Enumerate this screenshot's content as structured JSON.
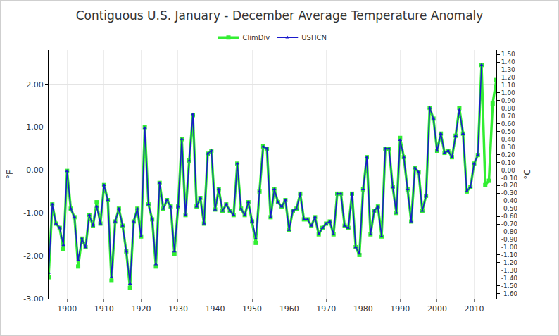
{
  "chart_data": {
    "type": "line",
    "title": "Contiguous U.S. January - December Average Temperature Anomaly",
    "y_label": "°F",
    "y2_label": "°C",
    "legend": "top",
    "grid": true,
    "x": [
      1895,
      1896,
      1897,
      1898,
      1899,
      1900,
      1901,
      1902,
      1903,
      1904,
      1905,
      1906,
      1907,
      1908,
      1909,
      1910,
      1911,
      1912,
      1913,
      1914,
      1915,
      1916,
      1917,
      1918,
      1919,
      1920,
      1921,
      1922,
      1923,
      1924,
      1925,
      1926,
      1927,
      1928,
      1929,
      1930,
      1931,
      1932,
      1933,
      1934,
      1935,
      1936,
      1937,
      1938,
      1939,
      1940,
      1941,
      1942,
      1943,
      1944,
      1945,
      1946,
      1947,
      1948,
      1949,
      1950,
      1951,
      1952,
      1953,
      1954,
      1955,
      1956,
      1957,
      1958,
      1959,
      1960,
      1961,
      1962,
      1963,
      1964,
      1965,
      1966,
      1967,
      1968,
      1969,
      1970,
      1971,
      1972,
      1973,
      1974,
      1975,
      1976,
      1977,
      1978,
      1979,
      1980,
      1981,
      1982,
      1983,
      1984,
      1985,
      1986,
      1987,
      1988,
      1989,
      1990,
      1991,
      1992,
      1993,
      1994,
      1995,
      1996,
      1997,
      1998,
      1999,
      2000,
      2001,
      2002,
      2003,
      2004,
      2005,
      2006,
      2007,
      2008,
      2009,
      2010,
      2011,
      2012,
      2013,
      2014,
      2015,
      2016
    ],
    "series": [
      {
        "name": "ClimDiv",
        "color": "#33ee33",
        "marker": "square",
        "line_style": "solid",
        "values": [
          -2.5,
          -0.8,
          -1.25,
          -1.35,
          -1.85,
          -0.02,
          -0.9,
          -1.1,
          -2.25,
          -1.6,
          -1.8,
          -1.05,
          -1.3,
          -0.75,
          -1.25,
          -0.35,
          -0.7,
          -2.58,
          -1.2,
          -0.9,
          -1.3,
          -1.9,
          -2.75,
          -1.2,
          -0.9,
          -1.55,
          1.0,
          -0.8,
          -1.15,
          -2.25,
          -0.3,
          -0.9,
          -0.7,
          -0.85,
          -1.95,
          -0.85,
          0.72,
          -1.05,
          0.22,
          1.28,
          -0.85,
          -0.65,
          -1.25,
          0.38,
          0.45,
          -0.92,
          -0.45,
          -0.95,
          -0.8,
          -0.95,
          -1.05,
          0.15,
          -0.9,
          -1.05,
          -0.75,
          -1.2,
          -1.7,
          -0.5,
          0.55,
          0.5,
          -1.1,
          -0.45,
          -0.75,
          -0.85,
          -0.7,
          -1.4,
          -0.95,
          -0.9,
          -0.55,
          -1.15,
          -1.15,
          -1.3,
          -1.1,
          -1.5,
          -1.35,
          -1.25,
          -1.2,
          -1.5,
          -0.55,
          -0.55,
          -1.3,
          -1.35,
          -0.55,
          -1.8,
          -1.98,
          -0.45,
          0.3,
          -1.5,
          -0.95,
          -0.85,
          -1.55,
          0.5,
          0.5,
          -0.4,
          -1.0,
          0.75,
          0.3,
          -0.45,
          -1.2,
          0.05,
          -0.05,
          -0.95,
          -0.6,
          1.45,
          1.2,
          0.45,
          0.85,
          0.4,
          0.45,
          0.3,
          0.8,
          1.45,
          0.85,
          -0.5,
          -0.4,
          0.15,
          0.35,
          2.45,
          -0.35,
          -0.25,
          1.55,
          2.1
        ]
      },
      {
        "name": "USHCN",
        "color": "#1a1acc",
        "marker": "triangle-up",
        "line_style": "solid",
        "values": [
          -2.4,
          -0.8,
          -1.25,
          -1.35,
          -1.75,
          -0.02,
          -0.9,
          -1.1,
          -2.1,
          -1.6,
          -1.8,
          -1.05,
          -1.3,
          -0.85,
          -1.25,
          -0.35,
          -0.7,
          -2.5,
          -1.2,
          -0.9,
          -1.3,
          -1.9,
          -2.65,
          -1.2,
          -0.9,
          -1.55,
          0.98,
          -0.8,
          -1.15,
          -2.2,
          -0.3,
          -0.9,
          -0.7,
          -0.85,
          -1.9,
          -0.85,
          0.72,
          -1.05,
          0.22,
          1.3,
          -0.85,
          -0.65,
          -1.25,
          0.38,
          0.45,
          -0.92,
          -0.45,
          -0.95,
          -0.8,
          -0.95,
          -1.05,
          0.15,
          -0.9,
          -1.05,
          -0.75,
          -1.2,
          -1.6,
          -0.5,
          0.55,
          0.5,
          -1.1,
          -0.45,
          -0.75,
          -0.85,
          -0.7,
          -1.4,
          -0.95,
          -0.9,
          -0.55,
          -1.15,
          -1.15,
          -1.3,
          -1.1,
          -1.5,
          -1.35,
          -1.25,
          -1.2,
          -1.5,
          -0.55,
          -0.55,
          -1.3,
          -1.35,
          -0.55,
          -1.8,
          -1.95,
          -0.45,
          0.3,
          -1.5,
          -0.95,
          -0.85,
          -1.55,
          0.5,
          0.5,
          -0.4,
          -1.0,
          0.7,
          0.3,
          -0.45,
          -1.2,
          0.05,
          -0.05,
          -0.95,
          -0.6,
          1.45,
          1.2,
          0.45,
          0.85,
          0.4,
          0.45,
          0.3,
          0.8,
          1.4,
          0.85,
          -0.5,
          -0.4,
          0.15,
          0.35,
          2.45,
          null,
          null,
          null,
          null
        ]
      }
    ],
    "xlim": [
      1895,
      2016
    ],
    "xticks": [
      1900,
      1910,
      1920,
      1930,
      1940,
      1950,
      1960,
      1970,
      1980,
      1990,
      2000,
      2010
    ],
    "ylim": [
      -3.0,
      2.8
    ],
    "yticks": [
      {
        "value": -3,
        "label": "-3.00"
      },
      {
        "value": -2,
        "label": "-2.00"
      },
      {
        "value": -1,
        "label": "-1.00"
      },
      {
        "value": 0,
        "label": "0.00"
      },
      {
        "value": 1,
        "label": "1.00"
      },
      {
        "value": 2,
        "label": "2.00"
      }
    ],
    "y2lim": [
      -1.667,
      1.556
    ],
    "y2ticks": [
      {
        "value": -1.6,
        "label": "-1.60"
      },
      {
        "value": -1.5,
        "label": "-1.50"
      },
      {
        "value": -1.4,
        "label": "-1.40"
      },
      {
        "value": -1.3,
        "label": "-1.30"
      },
      {
        "value": -1.2,
        "label": "-1.20"
      },
      {
        "value": -1.1,
        "label": "-1.10"
      },
      {
        "value": -1.0,
        "label": "-1.00"
      },
      {
        "value": -0.9,
        "label": "-0.90"
      },
      {
        "value": -0.8,
        "label": "-0.80"
      },
      {
        "value": -0.7,
        "label": "-0.70"
      },
      {
        "value": -0.6,
        "label": "-0.60"
      },
      {
        "value": -0.5,
        "label": "-0.50"
      },
      {
        "value": -0.4,
        "label": "-0.40"
      },
      {
        "value": -0.3,
        "label": "-0.30"
      },
      {
        "value": -0.2,
        "label": "-0.20"
      },
      {
        "value": -0.1,
        "label": "-0.10"
      },
      {
        "value": 0,
        "label": "0.00"
      },
      {
        "value": 0.1,
        "label": "0.10"
      },
      {
        "value": 0.2,
        "label": "0.20"
      },
      {
        "value": 0.3,
        "label": "0.30"
      },
      {
        "value": 0.4,
        "label": "0.40"
      },
      {
        "value": 0.5,
        "label": "0.50"
      },
      {
        "value": 0.6,
        "label": "0.60"
      },
      {
        "value": 0.7,
        "label": "0.70"
      },
      {
        "value": 0.8,
        "label": "0.80"
      },
      {
        "value": 0.9,
        "label": "0.90"
      },
      {
        "value": 1.0,
        "label": "1.00"
      },
      {
        "value": 1.1,
        "label": "1.10"
      },
      {
        "value": 1.2,
        "label": "1.20"
      },
      {
        "value": 1.3,
        "label": "1.30"
      },
      {
        "value": 1.4,
        "label": "1.40"
      },
      {
        "value": 1.5,
        "label": "1.50"
      }
    ]
  }
}
